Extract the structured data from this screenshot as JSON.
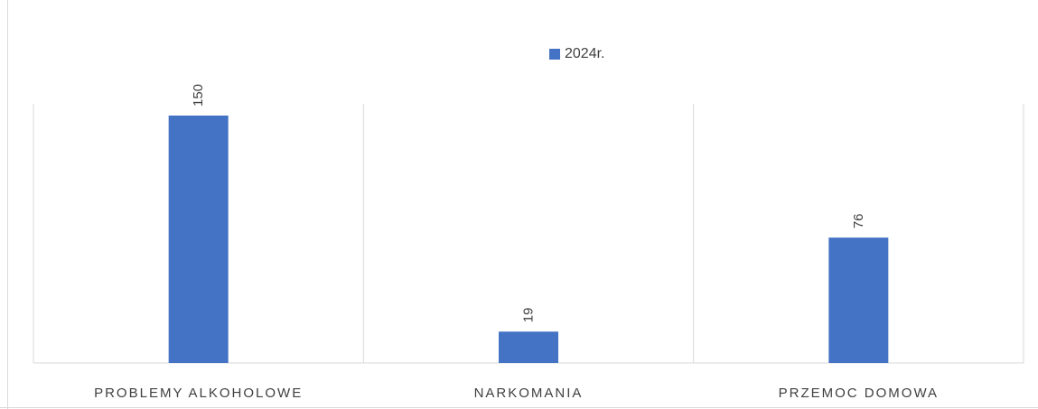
{
  "chart_data": {
    "type": "bar",
    "categories": [
      "PROBLEMY ALKOHOLOWE",
      "NARKOMANIA",
      "PRZEMOC DOMOWA"
    ],
    "series": [
      {
        "name": "2024r.",
        "values": [
          150,
          19,
          76
        ]
      }
    ],
    "ylim": [
      0,
      150
    ],
    "grid": "vertical category separators",
    "legend": "top-center",
    "data_labels": "rotated, above bars",
    "colors": {
      "bar": "#4472c4",
      "grid": "#d9d9d9",
      "text": "#404040"
    }
  }
}
